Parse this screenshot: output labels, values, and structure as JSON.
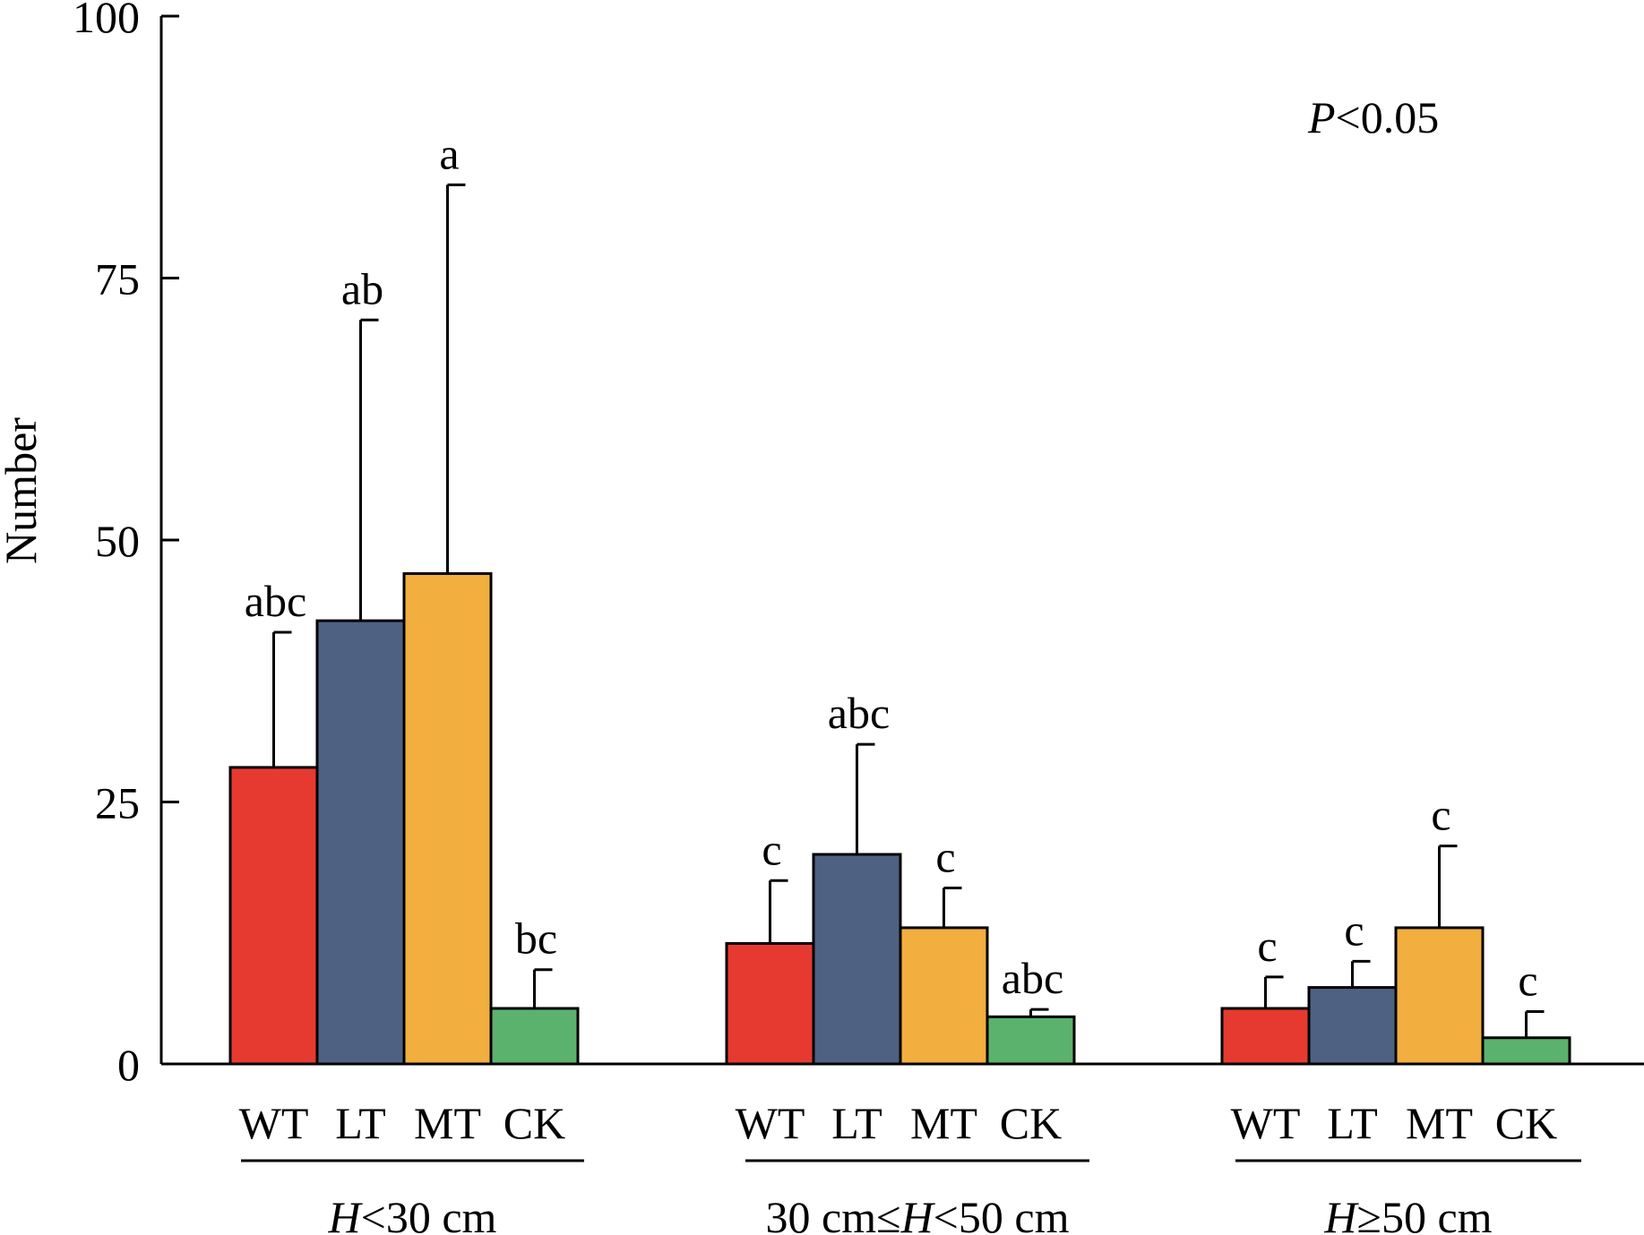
{
  "chart_data": {
    "type": "bar",
    "ylabel": "Number",
    "ylim": [
      0,
      100
    ],
    "yticks": [
      0,
      25,
      50,
      75,
      100
    ],
    "annotation": {
      "italic": "P",
      "rest": "<0.05"
    },
    "treatments": [
      "WT",
      "LT",
      "MT",
      "CK"
    ],
    "colors": {
      "WT": "#e63a30",
      "LT": "#4e6183",
      "MT": "#f2ae3e",
      "CK": "#5bb26d"
    },
    "groups": [
      {
        "label_parts": [
          {
            "t": "H",
            "i": true
          },
          {
            "t": "<30 cm",
            "i": false
          }
        ],
        "values": [
          28.3,
          42.3,
          46.8,
          5.3
        ],
        "errors": [
          12.9,
          28.7,
          37.1,
          3.7
        ],
        "significance": [
          "abc",
          "ab",
          "a",
          "bc"
        ]
      },
      {
        "label_parts": [
          {
            "t": "30 cm≤",
            "i": false
          },
          {
            "t": "H",
            "i": true
          },
          {
            "t": "<50 cm",
            "i": false
          }
        ],
        "values": [
          11.5,
          20.0,
          13.0,
          4.5
        ],
        "errors": [
          6.0,
          10.5,
          3.8,
          0.7
        ],
        "significance": [
          "c",
          "abc",
          "c",
          "abc"
        ]
      },
      {
        "label_parts": [
          {
            "t": "H",
            "i": true
          },
          {
            "t": "≥50 cm",
            "i": false
          }
        ],
        "values": [
          5.3,
          7.3,
          13.0,
          2.5
        ],
        "errors": [
          3.0,
          2.5,
          7.8,
          2.5
        ],
        "significance": [
          "c",
          "c",
          "c",
          "c"
        ]
      }
    ]
  }
}
